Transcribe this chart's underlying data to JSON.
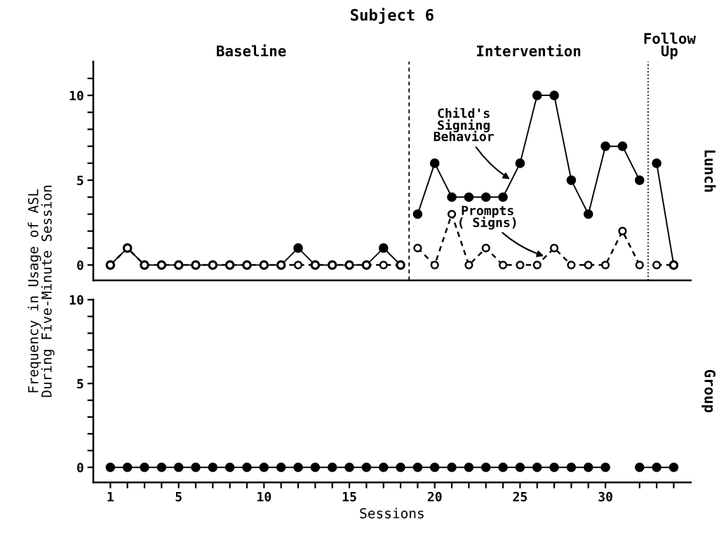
{
  "chart_data": [
    {
      "type": "line",
      "title": "Subject 6",
      "ylabel": "Frequency in Usage of ASL\nDuring Five-Minute Session",
      "xlim": [
        0,
        35
      ],
      "ylim": [
        -0.9,
        12
      ],
      "yticks": [
        0,
        {
          "value": 1,
          "label": null
        },
        {
          "value": 2,
          "label": null
        },
        {
          "value": 3,
          "label": null
        },
        {
          "value": 4,
          "label": null
        },
        5,
        {
          "value": 6,
          "label": null
        },
        {
          "value": 7,
          "label": null
        },
        {
          "value": 8,
          "label": null
        },
        {
          "value": 9,
          "label": null
        },
        10,
        {
          "value": 11,
          "label": null
        }
      ],
      "tick_labels": "y",
      "grid": false,
      "legend": false,
      "marker": "circle",
      "annotations": [
        "Baseline",
        "Intervention",
        "Follow\nUp",
        "Lunch"
      ],
      "ref_lines": [
        {
          "axis": "x",
          "value": 18.5,
          "line_style": "dashed",
          "color": "#000000"
        },
        {
          "axis": "x",
          "value": 32.5,
          "line_style": "dotted",
          "color": "#000000"
        }
      ],
      "series": [
        {
          "color": "#000000",
          "line_style": "solid",
          "x": [
            1,
            2,
            3,
            4,
            5,
            6,
            7,
            8,
            9,
            10,
            11,
            12,
            13,
            14,
            15,
            16,
            17,
            18
          ],
          "values": [
            0,
            1,
            0,
            0,
            0,
            0,
            0,
            0,
            0,
            0,
            0,
            1,
            0,
            0,
            0,
            0,
            1,
            0
          ]
        },
        {
          "color": "#000000",
          "line_style": "dashed",
          "x": [
            1,
            2,
            3,
            4,
            5,
            6,
            7,
            8,
            9,
            10,
            11,
            12,
            13,
            14,
            15,
            16,
            17,
            18
          ],
          "values": [
            0,
            1,
            0,
            0,
            0,
            0,
            0,
            0,
            0,
            0,
            0,
            0,
            0,
            0,
            0,
            0,
            0,
            0
          ]
        },
        {
          "name": "Child's\nSigning\nBehavior",
          "color": "#000000",
          "line_style": "solid",
          "x": [
            19,
            20,
            21,
            22,
            23,
            24,
            25,
            26,
            27,
            28,
            29,
            30,
            31,
            32
          ],
          "values": [
            3,
            6,
            4,
            4,
            4,
            4,
            6,
            10,
            10,
            5,
            3,
            7,
            7,
            5
          ]
        },
        {
          "name": "Prompts\n( Signs)",
          "color": "#000000",
          "line_style": "dashed",
          "x": [
            19,
            20,
            21,
            22,
            23,
            24,
            25,
            26,
            27,
            28,
            29,
            30,
            31,
            32
          ],
          "values": [
            1,
            0,
            3,
            0,
            1,
            0,
            0,
            0,
            1,
            0,
            0,
            0,
            2,
            0
          ]
        },
        {
          "color": "#000000",
          "line_style": "solid",
          "x": [
            33,
            34
          ],
          "values": [
            6,
            0
          ]
        },
        {
          "color": "#000000",
          "line_style": "dashed",
          "x": [
            33,
            34
          ],
          "values": [
            0,
            0
          ]
        }
      ]
    },
    {
      "type": "line",
      "xlabel": "Sessions",
      "xlim": [
        0,
        35
      ],
      "ylim": [
        -0.9,
        10
      ],
      "xticks": [
        1,
        {
          "value": 2,
          "label": null
        },
        {
          "value": 3,
          "label": null
        },
        {
          "value": 4,
          "label": null
        },
        5,
        {
          "value": 6,
          "label": null
        },
        {
          "value": 7,
          "label": null
        },
        {
          "value": 8,
          "label": null
        },
        {
          "value": 9,
          "label": null
        },
        10,
        {
          "value": 11,
          "label": null
        },
        {
          "value": 12,
          "label": null
        },
        {
          "value": 13,
          "label": null
        },
        {
          "value": 14,
          "label": null
        },
        15,
        {
          "value": 16,
          "label": null
        },
        {
          "value": 17,
          "label": null
        },
        {
          "value": 18,
          "label": null
        },
        {
          "value": 19,
          "label": null
        },
        20,
        {
          "value": 21,
          "label": null
        },
        {
          "value": 22,
          "label": null
        },
        {
          "value": 23,
          "label": null
        },
        {
          "value": 24,
          "label": null
        },
        25,
        {
          "value": 26,
          "label": null
        },
        {
          "value": 27,
          "label": null
        },
        {
          "value": 28,
          "label": null
        },
        {
          "value": 29,
          "label": null
        },
        30,
        {
          "value": 32,
          "label": null
        },
        {
          "value": 33,
          "label": null
        },
        {
          "value": 34,
          "label": null
        }
      ],
      "yticks": [
        0,
        {
          "value": 1,
          "label": null
        },
        {
          "value": 2,
          "label": null
        },
        {
          "value": 3,
          "label": null
        },
        {
          "value": 4,
          "label": null
        },
        5,
        {
          "value": 6,
          "label": null
        },
        {
          "value": 7,
          "label": null
        },
        {
          "value": 8,
          "label": null
        },
        {
          "value": 9,
          "label": null
        },
        10
      ],
      "grid": false,
      "legend": false,
      "marker": "circle",
      "annotations": [
        "Group"
      ],
      "series": [
        {
          "color": "#000000",
          "line_style": "solid",
          "x": [
            1,
            2,
            3,
            4,
            5,
            6,
            7,
            8,
            9,
            10,
            11,
            12,
            13,
            14,
            15,
            16,
            17,
            18,
            19,
            20,
            21,
            22,
            23,
            24,
            25,
            26,
            27,
            28,
            29,
            30,
            31,
            32,
            33,
            34
          ],
          "values": [
            0,
            0,
            0,
            0,
            0,
            0,
            0,
            0,
            0,
            0,
            0,
            0,
            0,
            0,
            0,
            0,
            0,
            0,
            0,
            0,
            0,
            0,
            0,
            0,
            0,
            0,
            0,
            0,
            0,
            0,
            null,
            0,
            0,
            0
          ]
        }
      ]
    }
  ]
}
